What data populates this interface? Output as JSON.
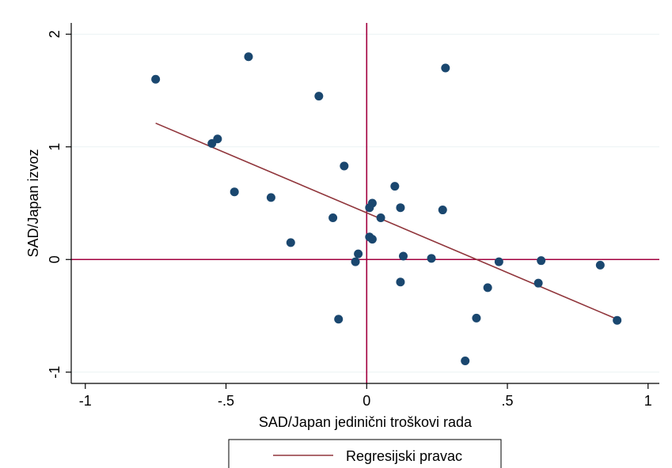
{
  "chart_data": {
    "type": "scatter",
    "xlabel": "SAD/Japan jedinični troškovi rada",
    "ylabel": "SAD/Japan izvoz",
    "xlim": [
      -1.05,
      1.04
    ],
    "ylim": [
      -1.1,
      2.1
    ],
    "xticks": [
      -1,
      -0.5,
      0,
      0.5,
      1
    ],
    "xtick_labels": [
      "-1",
      "-.5",
      "0",
      ".5",
      "1"
    ],
    "yticks": [
      -1,
      0,
      1,
      2
    ],
    "ytick_labels": [
      "-1",
      "0",
      "1",
      "2"
    ],
    "grid": "horizontal",
    "reference_lines": {
      "x": 0,
      "y": 0
    },
    "colors": {
      "points": "#1a476f",
      "fit": "#90353b",
      "reference": "#a2003e",
      "grid": "#eaf2f3"
    },
    "series": [
      {
        "type": "scatter",
        "x": [
          -0.75,
          -0.42,
          -0.17,
          0.28,
          -0.55,
          -0.53,
          -0.08,
          0.1,
          -0.47,
          -0.34,
          0.02,
          0.01,
          0.12,
          0.27,
          0.05,
          -0.12,
          0.01,
          0.02,
          -0.27,
          -0.03,
          -0.04,
          0.13,
          0.23,
          0.47,
          0.62,
          0.83,
          0.12,
          0.61,
          0.43,
          -0.1,
          0.39,
          0.89,
          0.35
        ],
        "y": [
          1.6,
          1.8,
          1.45,
          1.7,
          1.03,
          1.07,
          0.83,
          0.65,
          0.6,
          0.55,
          0.5,
          0.46,
          0.46,
          0.44,
          0.37,
          0.37,
          0.2,
          0.18,
          0.15,
          0.05,
          -0.02,
          0.03,
          0.01,
          -0.02,
          -0.01,
          -0.05,
          -0.2,
          -0.21,
          -0.25,
          -0.53,
          -0.52,
          -0.54,
          -0.9
        ]
      },
      {
        "type": "line",
        "name": "Regresijski pravac",
        "x": [
          -0.75,
          0.89
        ],
        "y": [
          1.21,
          -0.53
        ]
      }
    ],
    "legend": {
      "placement": "bottom",
      "entries": [
        "Regresijski pravac"
      ]
    }
  }
}
